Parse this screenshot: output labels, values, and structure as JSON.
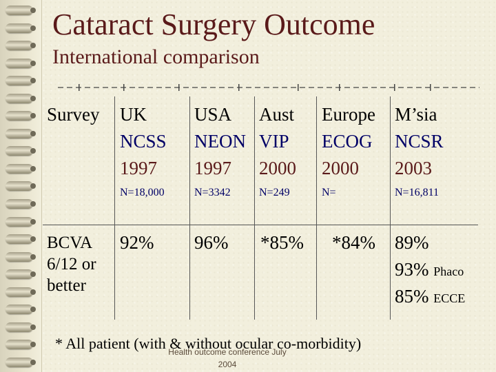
{
  "title": "Cataract Surgery Outcome",
  "subtitle": "International comparison",
  "table": {
    "survey_label": "Survey",
    "columns": [
      {
        "country": "UK",
        "study": "NCSS",
        "year": "1997",
        "n": "N=18,000"
      },
      {
        "country": "USA",
        "study": "NEON",
        "year": "1997",
        "n": "N=3342"
      },
      {
        "country": "Aust",
        "study": "VIP",
        "year": "2000",
        "n": "N=249"
      },
      {
        "country": "Europe",
        "study": "ECOG",
        "year": "2000",
        "n": "N="
      },
      {
        "country": "M’sia",
        "study": "NCSR",
        "year": "2003",
        "n": "N=16,811"
      }
    ],
    "row_label": [
      "BCVA",
      "6/12 or",
      "better"
    ],
    "values": {
      "uk": "92%",
      "usa": "96%",
      "aust": "*85%",
      "europe": "*84%",
      "msia": "89%",
      "msia_phaco_value": "93%",
      "msia_phaco_label": "Phaco",
      "msia_ecce_value": "85%",
      "msia_ecce_label": "ECCE"
    }
  },
  "footnote": "* All patient (with & without ocular co-morbidity)",
  "overlay_text": [
    "Health outcome conference July",
    "2004"
  ],
  "colors": {
    "title": "#5a1a1a",
    "study": "#000066",
    "background": "#f2efdd"
  }
}
